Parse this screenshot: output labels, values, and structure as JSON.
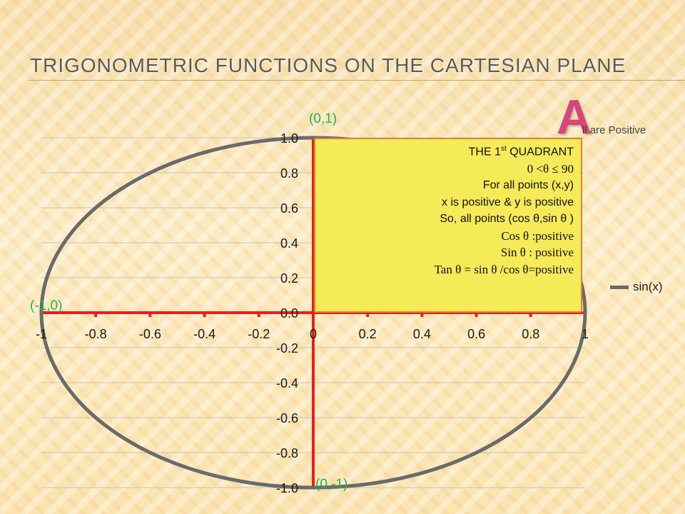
{
  "slide": {
    "title": "TRIGONOMETRIC FUNCTIONS ON THE CARTESIAN PLANE",
    "big_letter": "A",
    "big_letter_suffix": "ll are Positive"
  },
  "points": {
    "top": "(0,1)",
    "left": "(-1,0)",
    "bottom": "(0,-1)"
  },
  "quadrant_box": {
    "heading_pre": "THE 1",
    "heading_sup": "st",
    "heading_post": " QUADRANT",
    "lines": [
      "0 <θ ≤ 90",
      "For all points (x,y)",
      "x is positive & y is positive",
      "So, all points (cos θ,sin θ )",
      "Cos θ :positive",
      "Sin θ : positive",
      "Tan θ = sin θ /cos θ=positive"
    ]
  },
  "chart_data": {
    "type": "line",
    "series": [
      {
        "name": "sin(x)",
        "shape": "unit circle",
        "color": "#6a6a6a"
      }
    ],
    "xlim": [
      -1,
      1
    ],
    "ylim": [
      -1,
      1
    ],
    "x_ticks": [
      "-1",
      "-0.8",
      "-0.6",
      "-0.4",
      "-0.2",
      "0",
      "0.2",
      "0.4",
      "0.6",
      "0.8",
      "1"
    ],
    "y_ticks": [
      "1.0",
      "0.8",
      "0.6",
      "0.4",
      "0.2",
      "0.0",
      "-0.2",
      "-0.4",
      "-0.6",
      "-0.8",
      "-1.0"
    ],
    "axis_color": "#ee1c1c",
    "gridlines": true,
    "legend_position": "right"
  }
}
